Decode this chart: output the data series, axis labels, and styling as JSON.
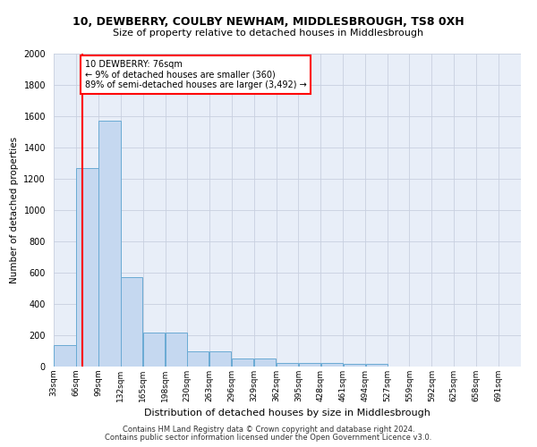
{
  "title": "10, DEWBERRY, COULBY NEWHAM, MIDDLESBROUGH, TS8 0XH",
  "subtitle": "Size of property relative to detached houses in Middlesbrough",
  "xlabel": "Distribution of detached houses by size in Middlesbrough",
  "ylabel": "Number of detached properties",
  "bin_edges": [
    33,
    66,
    99,
    132,
    165,
    198,
    230,
    263,
    296,
    329,
    362,
    395,
    428,
    461,
    494,
    527,
    559,
    592,
    625,
    658,
    691
  ],
  "bar_heights": [
    140,
    1270,
    1570,
    570,
    215,
    215,
    100,
    100,
    50,
    50,
    25,
    25,
    25,
    20,
    20,
    0,
    0,
    0,
    0,
    0
  ],
  "bar_color": "#c5d8f0",
  "bar_edge_color": "#6aaad4",
  "background_color": "#e8eef8",
  "grid_color": "#c8d0e0",
  "red_line_x": 76,
  "annotation_text": "10 DEWBERRY: 76sqm\n← 9% of detached houses are smaller (360)\n89% of semi-detached houses are larger (3,492) →",
  "annotation_box_color": "white",
  "annotation_box_edge": "red",
  "ylim": [
    0,
    2000
  ],
  "yticks": [
    0,
    200,
    400,
    600,
    800,
    1000,
    1200,
    1400,
    1600,
    1800,
    2000
  ],
  "footer1": "Contains HM Land Registry data © Crown copyright and database right 2024.",
  "footer2": "Contains public sector information licensed under the Open Government Licence v3.0."
}
